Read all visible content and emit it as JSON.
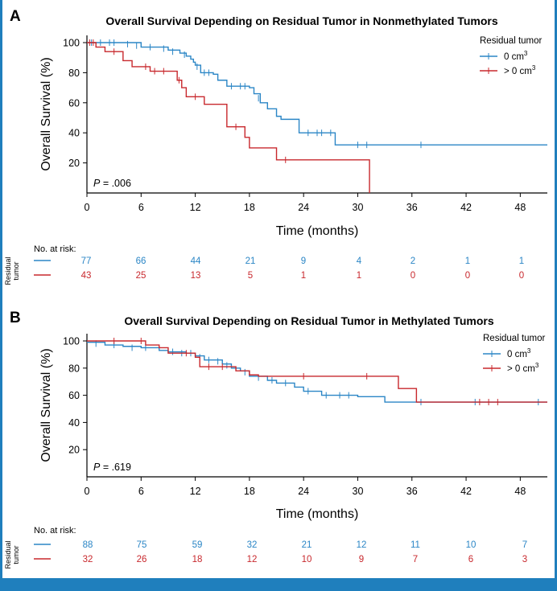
{
  "colors": {
    "blue": "#2b86c6",
    "red": "#c8282d",
    "frame": "#1f7fbd",
    "axis": "#000000"
  },
  "risk_label": "No. at risk:",
  "risk_group_label": [
    "Residual",
    "tumor"
  ],
  "chart_data": [
    {
      "panel_label": "A",
      "type": "line",
      "title": "Overall Survival Depending on Residual Tumor in Nonmethylated Tumors",
      "xlabel": "Time (months)",
      "ylabel": "Overall Survival (%)",
      "xticks": [
        "0",
        "6",
        "12",
        "18",
        "24",
        "30",
        "36",
        "42",
        "48"
      ],
      "yticks": [
        "20",
        "40",
        "60",
        "80",
        "100"
      ],
      "xlim": [
        0,
        51
      ],
      "ylim": [
        0,
        105
      ],
      "pvalue": {
        "prefix": "P",
        "text": " = .006"
      },
      "legend": {
        "title": "Residual tumor",
        "position": "top-right"
      },
      "series": [
        {
          "name": "0 cm",
          "name_sup": "3",
          "color_key": "blue",
          "steps": [
            [
              0,
              100
            ],
            [
              3.5,
              100
            ],
            [
              6,
              97
            ],
            [
              8,
              97
            ],
            [
              9,
              95
            ],
            [
              10.3,
              93
            ],
            [
              11,
              91
            ],
            [
              11.5,
              89
            ],
            [
              11.8,
              87
            ],
            [
              12,
              85
            ],
            [
              12.6,
              80
            ],
            [
              14,
              79
            ],
            [
              14.5,
              75
            ],
            [
              15.5,
              71
            ],
            [
              18,
              70
            ],
            [
              18.5,
              66
            ],
            [
              19.2,
              60
            ],
            [
              20,
              56
            ],
            [
              21,
              51
            ],
            [
              21.5,
              49
            ],
            [
              23.5,
              40
            ],
            [
              27.5,
              32
            ],
            [
              51,
              32
            ]
          ],
          "censored": [
            [
              0.5,
              100
            ],
            [
              1.5,
              100
            ],
            [
              2.5,
              100
            ],
            [
              3,
              100
            ],
            [
              4.5,
              99
            ],
            [
              5.5,
              98
            ],
            [
              7,
              97
            ],
            [
              8.5,
              96
            ],
            [
              9.5,
              94
            ],
            [
              10.8,
              92
            ],
            [
              12.2,
              84
            ],
            [
              13,
              80
            ],
            [
              13.5,
              80
            ],
            [
              16,
              71
            ],
            [
              17,
              71
            ],
            [
              17.5,
              71
            ],
            [
              19,
              63
            ],
            [
              24.5,
              40
            ],
            [
              25.5,
              40
            ],
            [
              26,
              40
            ],
            [
              27,
              40
            ],
            [
              30,
              32
            ],
            [
              31,
              32
            ],
            [
              37,
              32
            ]
          ]
        },
        {
          "name": "> 0 cm",
          "name_sup": "3",
          "color_key": "red",
          "steps": [
            [
              0,
              100
            ],
            [
              1,
              97
            ],
            [
              2,
              94
            ],
            [
              4,
              88
            ],
            [
              5,
              84
            ],
            [
              7,
              81
            ],
            [
              10,
              75
            ],
            [
              10.5,
              70
            ],
            [
              11,
              64
            ],
            [
              13,
              59
            ],
            [
              15.5,
              44
            ],
            [
              17.5,
              37
            ],
            [
              18,
              30
            ],
            [
              21,
              22
            ],
            [
              31.3,
              22
            ],
            [
              31.3,
              0
            ]
          ],
          "censored": [
            [
              0.3,
              100
            ],
            [
              0.7,
              100
            ],
            [
              3,
              94
            ],
            [
              6.5,
              84
            ],
            [
              7.5,
              81
            ],
            [
              8.5,
              81
            ],
            [
              10.2,
              75
            ],
            [
              12,
              64
            ],
            [
              16.5,
              44
            ],
            [
              22,
              22
            ]
          ]
        }
      ],
      "risk_table": {
        "times": [
          "0",
          "6",
          "12",
          "18",
          "24",
          "30",
          "36",
          "42",
          "48"
        ],
        "rows": [
          {
            "color_key": "blue",
            "values": [
              "77",
              "66",
              "44",
              "21",
              "9",
              "4",
              "2",
              "1",
              "1"
            ]
          },
          {
            "color_key": "red",
            "values": [
              "43",
              "25",
              "13",
              "5",
              "1",
              "1",
              "0",
              "0",
              "0"
            ]
          }
        ]
      }
    },
    {
      "panel_label": "B",
      "type": "line",
      "title": "Overall Survival Depending on Residual Tumor in Methylated Tumors",
      "xlabel": "Time (months)",
      "ylabel": "Overall Survival (%)",
      "xticks": [
        "0",
        "6",
        "12",
        "18",
        "24",
        "30",
        "36",
        "42",
        "48"
      ],
      "yticks": [
        "20",
        "40",
        "60",
        "80",
        "100"
      ],
      "xlim": [
        0,
        51
      ],
      "ylim": [
        0,
        105
      ],
      "pvalue": {
        "prefix": "P",
        "text": " = .619"
      },
      "legend": {
        "title": "Residual tumor",
        "position": "top-right"
      },
      "series": [
        {
          "name": "0 cm",
          "name_sup": "3",
          "color_key": "blue",
          "steps": [
            [
              0,
              99
            ],
            [
              2,
              97
            ],
            [
              4,
              96
            ],
            [
              6,
              95
            ],
            [
              8,
              93
            ],
            [
              9,
              92
            ],
            [
              11,
              91
            ],
            [
              12,
              89
            ],
            [
              13,
              86
            ],
            [
              15,
              83
            ],
            [
              16,
              80
            ],
            [
              17,
              78
            ],
            [
              18,
              74
            ],
            [
              20,
              71
            ],
            [
              21,
              69
            ],
            [
              23,
              66
            ],
            [
              24,
              63
            ],
            [
              26,
              60
            ],
            [
              30,
              59
            ],
            [
              33,
              55
            ],
            [
              51,
              55
            ]
          ],
          "censored": [
            [
              1,
              98
            ],
            [
              3,
              97
            ],
            [
              5,
              95
            ],
            [
              6.5,
              95
            ],
            [
              9.5,
              92
            ],
            [
              10.5,
              91
            ],
            [
              11.5,
              91
            ],
            [
              12.5,
              88
            ],
            [
              13.5,
              86
            ],
            [
              14.5,
              85
            ],
            [
              15.5,
              82
            ],
            [
              17.5,
              77
            ],
            [
              19,
              73
            ],
            [
              20.5,
              71
            ],
            [
              22,
              69
            ],
            [
              24.5,
              63
            ],
            [
              26.5,
              60
            ],
            [
              28,
              60
            ],
            [
              29,
              60
            ],
            [
              37,
              55
            ],
            [
              43,
              55
            ],
            [
              50,
              55
            ]
          ]
        },
        {
          "name": "> 0 cm",
          "name_sup": "3",
          "color_key": "red",
          "steps": [
            [
              0,
              100
            ],
            [
              6.5,
              97
            ],
            [
              8,
              95
            ],
            [
              9,
              91
            ],
            [
              12,
              88
            ],
            [
              12.5,
              81
            ],
            [
              16,
              81
            ],
            [
              16.5,
              78
            ],
            [
              18,
              75
            ],
            [
              19,
              74
            ],
            [
              34,
              74
            ],
            [
              34.5,
              65
            ],
            [
              36.5,
              55
            ],
            [
              51,
              55
            ]
          ],
          "censored": [
            [
              3,
              100
            ],
            [
              6,
              100
            ],
            [
              11,
              91
            ],
            [
              13.5,
              81
            ],
            [
              15,
              81
            ],
            [
              24,
              74
            ],
            [
              31,
              74
            ],
            [
              43.5,
              55
            ],
            [
              44.5,
              55
            ],
            [
              45.5,
              55
            ]
          ]
        }
      ],
      "risk_table": {
        "times": [
          "0",
          "6",
          "12",
          "18",
          "24",
          "30",
          "36",
          "42",
          "48"
        ],
        "rows": [
          {
            "color_key": "blue",
            "values": [
              "88",
              "75",
              "59",
              "32",
              "21",
              "12",
              "11",
              "10",
              "7"
            ]
          },
          {
            "color_key": "red",
            "values": [
              "32",
              "26",
              "18",
              "12",
              "10",
              "9",
              "7",
              "6",
              "3"
            ]
          }
        ]
      }
    }
  ]
}
